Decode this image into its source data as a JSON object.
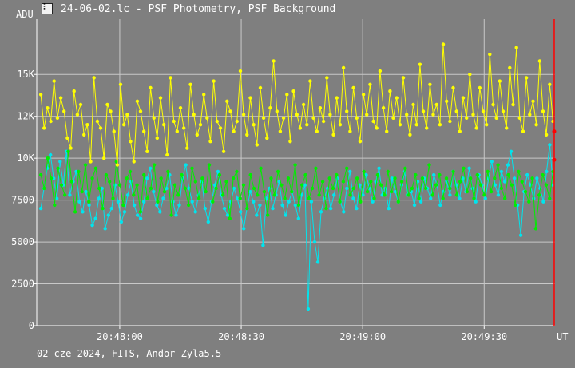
{
  "window": {
    "title": "24-06-02.lc - PSF Photometry, PSF Background",
    "icon": "light-curve-app-icon"
  },
  "footer": {
    "info": "02 cze 2024, FITS, Andor Zyla5.5"
  },
  "colors": {
    "background": "#7f7f7f",
    "grid": "#c8c8c8",
    "series_yellow": "#ffff00",
    "series_cyan": "#00e5ee",
    "series_green": "#00ee00",
    "cursor": "#ff0000"
  },
  "chart_data": {
    "type": "line",
    "ylabel": "ADU",
    "xlabel": "UT",
    "yticks": [
      {
        "value": 0,
        "label": "0"
      },
      {
        "value": 2500,
        "label": "2500"
      },
      {
        "value": 5000,
        "label": "5000"
      },
      {
        "value": 7500,
        "label": "7500"
      },
      {
        "value": 10000,
        "label": "10K"
      },
      {
        "value": 12500,
        "label": "12K"
      },
      {
        "value": 15000,
        "label": "15K"
      }
    ],
    "xticks": [
      {
        "value": 0,
        "label": "20:48:00"
      },
      {
        "value": 30,
        "label": "20:48:30"
      },
      {
        "value": 60,
        "label": "20:49:00"
      },
      {
        "value": 90,
        "label": "20:49:30"
      }
    ],
    "xlim_seconds_from_20_48_00": [
      -20.5,
      107.5
    ],
    "ylim": [
      0,
      18300
    ],
    "grid": true,
    "series": [
      {
        "color": "yellow",
        "values": [
          13800,
          11800,
          13000,
          12200,
          14600,
          12400,
          13600,
          12800,
          11200,
          10600,
          14000,
          12600,
          13200,
          11400,
          12000,
          9800,
          14800,
          12200,
          11800,
          10000,
          13200,
          12800,
          11600,
          9600,
          14400,
          12000,
          12600,
          11000,
          9800,
          13400,
          12800,
          11600,
          10400,
          14200,
          12400,
          11200,
          13600,
          12000,
          10200,
          14800,
          12200,
          11600,
          13000,
          11800,
          10600,
          14400,
          12600,
          11400,
          12000,
          13800,
          12400,
          11000,
          14600,
          12200,
          11800,
          10400,
          13400,
          12800,
          11600,
          12200,
          15200,
          12600,
          11400,
          13600,
          12000,
          10800,
          14200,
          12400,
          11200,
          13000,
          15800,
          12800,
          11600,
          12400,
          13800,
          11000,
          14000,
          12600,
          11800,
          13200,
          12000,
          14600,
          12400,
          11600,
          13000,
          12200,
          14800,
          12600,
          11400,
          13600,
          12000,
          15400,
          12800,
          11600,
          14200,
          12400,
          11000,
          13800,
          12600,
          14400,
          12200,
          11800,
          15200,
          13000,
          11600,
          14000,
          12400,
          13600,
          12000,
          14800,
          12600,
          11400,
          13200,
          12000,
          15600,
          12800,
          11800,
          14400,
          12600,
          13200,
          12000,
          16800,
          13400,
          12200,
          14200,
          12800,
          11600,
          13600,
          12400,
          15000,
          12600,
          11800,
          14200,
          12800,
          12000,
          16200,
          13200,
          12400,
          14600,
          12800,
          11800,
          15400,
          13200,
          16600,
          12400,
          11600,
          14800,
          12600,
          13400,
          12000,
          15800,
          12800,
          11400,
          14400,
          12200
        ]
      },
      {
        "color": "cyan",
        "values": [
          7000,
          8200,
          9400,
          10200,
          8800,
          7600,
          9800,
          8400,
          10400,
          7800,
          8600,
          9200,
          7400,
          6800,
          8000,
          7200,
          6000,
          6400,
          7600,
          8200,
          5800,
          6600,
          7000,
          8400,
          7400,
          6200,
          6800,
          7800,
          8600,
          7200,
          6600,
          6400,
          7400,
          8800,
          9400,
          8000,
          7200,
          6800,
          7600,
          8200,
          9000,
          7400,
          6600,
          7200,
          8800,
          9600,
          8200,
          7400,
          6800,
          7800,
          8600,
          7000,
          6200,
          7400,
          8400,
          9200,
          7800,
          7000,
          6600,
          7400,
          8200,
          7600,
          6800,
          5800,
          7000,
          8000,
          7400,
          6600,
          7200,
          4800,
          7600,
          8200,
          7000,
          7800,
          8600,
          7200,
          6600,
          7400,
          8000,
          7200,
          6400,
          7800,
          8400,
          1000,
          7400,
          5000,
          3800,
          6800,
          7600,
          8200,
          7000,
          7800,
          8800,
          7400,
          6800,
          8200,
          9200,
          7600,
          7000,
          8400,
          7800,
          9000,
          8200,
          7400,
          8600,
          9400,
          7800,
          8200,
          7000,
          8800,
          8000,
          7400,
          8400,
          9200,
          7800,
          8000,
          7200,
          8600,
          7400,
          8800,
          8200,
          7600,
          9000,
          8400,
          7200,
          8000,
          8600,
          7800,
          9200,
          8400,
          7600,
          8800,
          8000,
          9400,
          8200,
          7400,
          9000,
          8400,
          7600,
          8800,
          9800,
          8400,
          7800,
          9200,
          8600,
          9600,
          10400,
          8800,
          7200,
          5400,
          8000,
          9000,
          8400,
          7600,
          8800,
          8200,
          7400,
          9200,
          10800,
          8400
        ]
      },
      {
        "color": "green",
        "values": [
          9000,
          8200,
          10000,
          8800,
          7200,
          9400,
          8400,
          7800,
          10400,
          8600,
          6800,
          9200,
          8000,
          9600,
          7400,
          8800,
          9400,
          8200,
          7000,
          9000,
          8600,
          7600,
          9800,
          8400,
          7200,
          8800,
          9200,
          7800,
          8400,
          6800,
          9000,
          7600,
          8200,
          9600,
          7400,
          8800,
          8000,
          9200,
          6600,
          8400,
          7800,
          9000,
          8200,
          7200,
          9400,
          8600,
          7600,
          8800,
          8000,
          9600,
          7400,
          8200,
          9000,
          7800,
          8600,
          6400,
          8800,
          9200,
          7600,
          8400,
          7000,
          9000,
          8200,
          7800,
          9400,
          8000,
          6600,
          8800,
          7800,
          9200,
          8400,
          7600,
          8800,
          8000,
          9600,
          7200,
          8400,
          9000,
          7600,
          8200,
          9400,
          7800,
          8600,
          7000,
          8800,
          8200,
          9000,
          7400,
          8600,
          9400,
          7800,
          8200,
          8800,
          7400,
          9200,
          8000,
          8600,
          7600,
          9000,
          8400,
          7800,
          9200,
          8000,
          8800,
          7400,
          8600,
          9400,
          7800,
          8200,
          9000,
          7600,
          8800,
          8200,
          9600,
          7800,
          8400,
          9000,
          7600,
          8800,
          8200,
          9200,
          7800,
          8600,
          9400,
          8000,
          8800,
          7600,
          9000,
          8400,
          7800,
          9200,
          8000,
          8800,
          9600,
          8200,
          7600,
          9000,
          8400,
          7200,
          9200,
          8600,
          8000,
          7400,
          8800,
          5800,
          7800,
          9000,
          8400,
          7600,
          9200
        ]
      }
    ],
    "cursor_x_seconds": 107.3,
    "cursor_markers": [
      11600,
      9900
    ]
  }
}
